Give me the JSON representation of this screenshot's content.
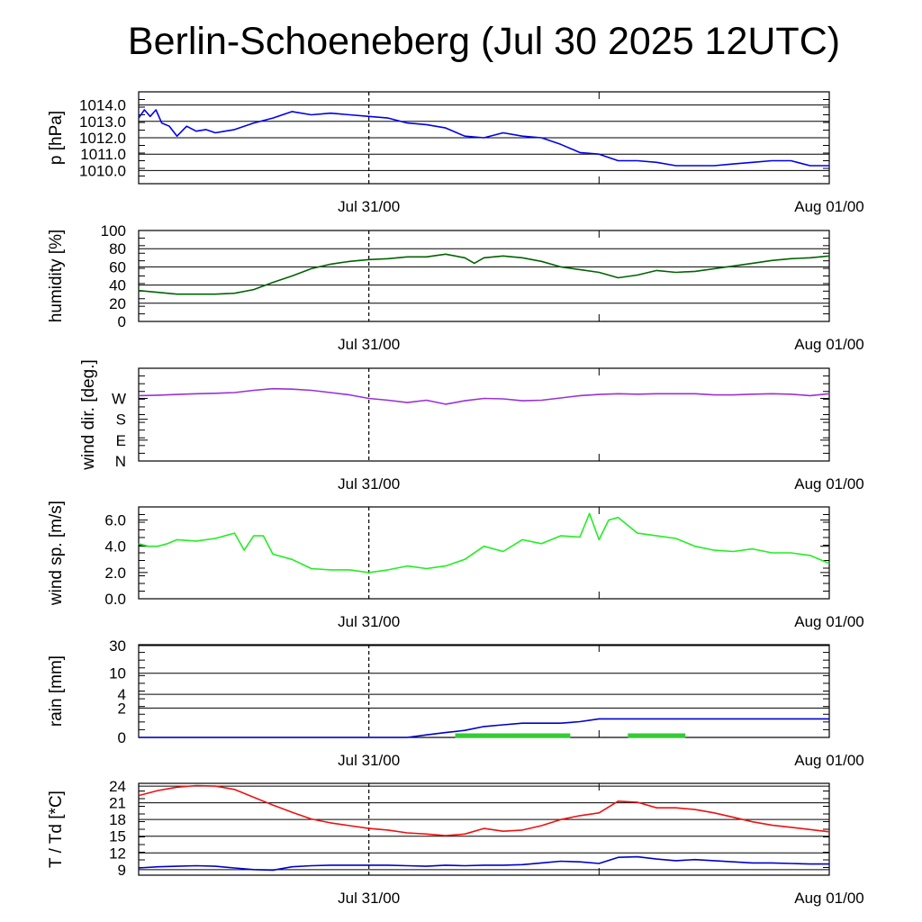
{
  "title": "Berlin-Schoeneberg (Jul 30 2025 12UTC)",
  "colors": {
    "pressure": "#0000ee",
    "humidity": "#006400",
    "wind_dir": "#9a30d8",
    "wind_speed": "#22ee22",
    "rain_total": "#0000cc",
    "rain_bar": "#33cc33",
    "temperature": "#ee1111",
    "dewpoint": "#0000cc"
  },
  "chart_data": [
    {
      "type": "line",
      "ylabel": "p [hPa]",
      "xticks": [
        {
          "x": 12,
          "label": "Jul 31/00"
        },
        {
          "x": 36,
          "label": "Aug 01/00"
        }
      ],
      "xlim": [
        0,
        36
      ],
      "ylim": [
        1009.2,
        1014.8
      ],
      "yticks": [
        "1010.0",
        "1011.0",
        "1012.0",
        "1013.0",
        "1014.0"
      ],
      "grid": true,
      "series": [
        {
          "key": "pressure",
          "x": [
            0,
            0.3,
            0.6,
            0.9,
            1.2,
            1.6,
            2,
            2.5,
            3,
            3.5,
            4,
            4.5,
            5,
            6,
            7,
            8,
            9,
            10,
            11,
            12,
            13,
            14,
            15,
            16,
            17,
            18,
            19,
            20,
            21,
            22,
            23,
            24,
            25,
            26,
            27,
            28,
            29,
            30,
            31,
            32,
            33,
            34,
            35,
            36
          ],
          "y": [
            1013.2,
            1013.7,
            1013.3,
            1013.7,
            1012.9,
            1012.7,
            1012.1,
            1012.7,
            1012.4,
            1012.5,
            1012.3,
            1012.4,
            1012.5,
            1012.9,
            1013.2,
            1013.6,
            1013.4,
            1013.5,
            1013.4,
            1013.3,
            1013.2,
            1012.9,
            1012.8,
            1012.6,
            1012.1,
            1012.0,
            1012.3,
            1012.1,
            1012.0,
            1011.6,
            1011.1,
            1011.0,
            1010.6,
            1010.6,
            1010.5,
            1010.3,
            1010.3,
            1010.3,
            1010.4,
            1010.5,
            1010.6,
            1010.6,
            1010.3,
            1010.3
          ]
        }
      ]
    },
    {
      "type": "line",
      "ylabel": "humidity [%]",
      "xticks": [
        {
          "x": 12,
          "label": "Jul 31/00"
        },
        {
          "x": 36,
          "label": "Aug 01/00"
        }
      ],
      "xlim": [
        0,
        36
      ],
      "ylim": [
        0,
        100
      ],
      "yticks": [
        "0",
        "20",
        "40",
        "60",
        "80",
        "100"
      ],
      "grid": true,
      "series": [
        {
          "key": "humidity",
          "x": [
            0,
            1,
            2,
            3,
            4,
            5,
            6,
            7,
            8,
            9,
            10,
            11,
            12,
            13,
            14,
            15,
            16,
            17,
            17.5,
            18,
            19,
            20,
            21,
            22,
            23,
            24,
            25,
            26,
            27,
            28,
            29,
            30,
            31,
            32,
            33,
            34,
            35,
            36
          ],
          "y": [
            34,
            32,
            30,
            30,
            30,
            31,
            35,
            43,
            50,
            58,
            63,
            66,
            68,
            69,
            71,
            71,
            74,
            70,
            64,
            70,
            72,
            70,
            66,
            60,
            57,
            54,
            48,
            51,
            56,
            54,
            55,
            58,
            61,
            64,
            67,
            69,
            70,
            72
          ]
        }
      ]
    },
    {
      "type": "line",
      "ylabel": "wind dir. [deg.]",
      "xticks": [
        {
          "x": 12,
          "label": "Jul 31/00"
        },
        {
          "x": 36,
          "label": "Aug 01/00"
        }
      ],
      "xlim": [
        0,
        36
      ],
      "ylim": [
        0,
        400
      ],
      "yticks": [
        "N",
        "E",
        "S",
        "W"
      ],
      "grid": false,
      "series": [
        {
          "key": "wind_dir",
          "x": [
            0,
            1,
            2,
            3,
            4,
            5,
            6,
            7,
            8,
            9,
            10,
            11,
            12,
            13,
            14,
            15,
            16,
            17,
            18,
            19,
            20,
            21,
            22,
            23,
            24,
            25,
            26,
            27,
            28,
            29,
            30,
            31,
            32,
            33,
            34,
            35,
            36
          ],
          "y": [
            282,
            284,
            287,
            290,
            292,
            295,
            305,
            312,
            310,
            305,
            295,
            285,
            270,
            262,
            252,
            262,
            245,
            260,
            270,
            268,
            260,
            262,
            272,
            282,
            287,
            290,
            288,
            290,
            290,
            290,
            285,
            285,
            288,
            290,
            288,
            282,
            290
          ]
        }
      ]
    },
    {
      "type": "line",
      "ylabel": "wind sp. [m/s]",
      "xticks": [
        {
          "x": 12,
          "label": "Jul 31/00"
        },
        {
          "x": 36,
          "label": "Aug 01/00"
        }
      ],
      "xlim": [
        0,
        36
      ],
      "ylim": [
        0,
        7
      ],
      "yticks": [
        "0.0",
        "2.0",
        "4.0",
        "6.0"
      ],
      "grid": false,
      "series": [
        {
          "key": "wind_speed",
          "x": [
            0,
            0.5,
            1,
            1.5,
            2,
            3,
            4,
            5,
            5.5,
            6,
            6.5,
            7,
            8,
            9,
            10,
            11,
            12,
            13,
            14,
            15,
            16,
            17,
            18,
            19,
            20,
            21,
            22,
            23,
            23.5,
            24,
            24.5,
            25,
            26,
            27,
            28,
            29,
            30,
            31,
            32,
            33,
            34,
            35,
            36
          ],
          "y": [
            4.2,
            4.0,
            4.0,
            4.2,
            4.5,
            4.4,
            4.6,
            5.0,
            3.7,
            4.8,
            4.8,
            3.4,
            3.0,
            2.3,
            2.2,
            2.2,
            2.0,
            2.2,
            2.5,
            2.3,
            2.5,
            3.0,
            4.0,
            3.6,
            4.5,
            4.2,
            4.8,
            4.7,
            6.5,
            4.5,
            6.0,
            6.2,
            5.0,
            4.8,
            4.6,
            4.0,
            3.7,
            3.6,
            3.8,
            3.5,
            3.5,
            3.3,
            2.7
          ]
        }
      ]
    },
    {
      "type": "line",
      "ylabel": "rain [mm]",
      "xticks": [
        {
          "x": 12,
          "label": "Jul 31/00"
        },
        {
          "x": 36,
          "label": "Aug 01/00"
        }
      ],
      "xlim": [
        0,
        36
      ],
      "yticks": [
        "0",
        "2",
        "4",
        "10",
        "30"
      ],
      "grid": true,
      "series": [
        {
          "key": "rain_total",
          "x": [
            0,
            13,
            14,
            15,
            16,
            17,
            18,
            19,
            20,
            21,
            22,
            23,
            24,
            25,
            26,
            27,
            28,
            29,
            30,
            31,
            32,
            33,
            34,
            35,
            36
          ],
          "y": [
            0,
            0,
            0,
            0.1,
            0.2,
            0.3,
            0.5,
            0.6,
            0.7,
            0.7,
            0.7,
            0.8,
            1.0,
            1.0,
            1.0,
            1.0,
            1.0,
            1.0,
            1.0,
            1.0,
            1.0,
            1.0,
            1.0,
            1.0,
            1.0
          ]
        }
      ],
      "bars": [
        {
          "key": "rain_bar",
          "x0": 16.5,
          "x1": 22.5,
          "y": 0.3
        },
        {
          "key": "rain_bar",
          "x0": 25.5,
          "x1": 28.5,
          "y": 0.3
        }
      ]
    },
    {
      "type": "line",
      "ylabel": "T / Td [*C]",
      "xticks": [
        {
          "x": 12,
          "label": "Jul 31/00"
        },
        {
          "x": 36,
          "label": "Aug 01/00"
        }
      ],
      "xlim": [
        0,
        36
      ],
      "ylim": [
        8,
        24.5
      ],
      "yticks": [
        "9",
        "12",
        "15",
        "18",
        "21",
        "24"
      ],
      "grid": true,
      "series": [
        {
          "key": "temperature",
          "x": [
            0,
            1,
            2,
            3,
            4,
            5,
            6,
            7,
            8,
            9,
            10,
            11,
            12,
            13,
            14,
            15,
            16,
            17,
            18,
            19,
            20,
            21,
            22,
            23,
            24,
            25,
            26,
            27,
            28,
            29,
            30,
            31,
            32,
            33,
            34,
            35,
            36
          ],
          "y": [
            22.3,
            23.2,
            23.8,
            24.1,
            24.0,
            23.4,
            22.0,
            20.6,
            19.3,
            18.1,
            17.4,
            16.9,
            16.4,
            16.1,
            15.6,
            15.4,
            15.1,
            15.4,
            16.4,
            15.9,
            16.1,
            16.9,
            18.0,
            18.7,
            19.2,
            21.3,
            21.1,
            20.1,
            20.1,
            19.8,
            19.2,
            18.4,
            17.6,
            17.0,
            16.6,
            16.2,
            15.8
          ]
        },
        {
          "key": "dewpoint",
          "x": [
            0,
            1,
            2,
            3,
            4,
            5,
            6,
            7,
            8,
            9,
            10,
            11,
            12,
            13,
            14,
            15,
            16,
            17,
            18,
            19,
            20,
            21,
            22,
            23,
            24,
            25,
            26,
            27,
            28,
            29,
            30,
            31,
            32,
            33,
            34,
            35,
            36
          ],
          "y": [
            9.3,
            9.5,
            9.6,
            9.7,
            9.6,
            9.3,
            9.0,
            8.9,
            9.5,
            9.7,
            9.8,
            9.8,
            9.8,
            9.8,
            9.7,
            9.6,
            9.8,
            9.7,
            9.8,
            9.8,
            9.9,
            10.2,
            10.5,
            10.4,
            10.1,
            11.2,
            11.3,
            10.9,
            10.6,
            10.8,
            10.6,
            10.4,
            10.2,
            10.2,
            10.1,
            10.0,
            10.0
          ]
        }
      ]
    }
  ]
}
